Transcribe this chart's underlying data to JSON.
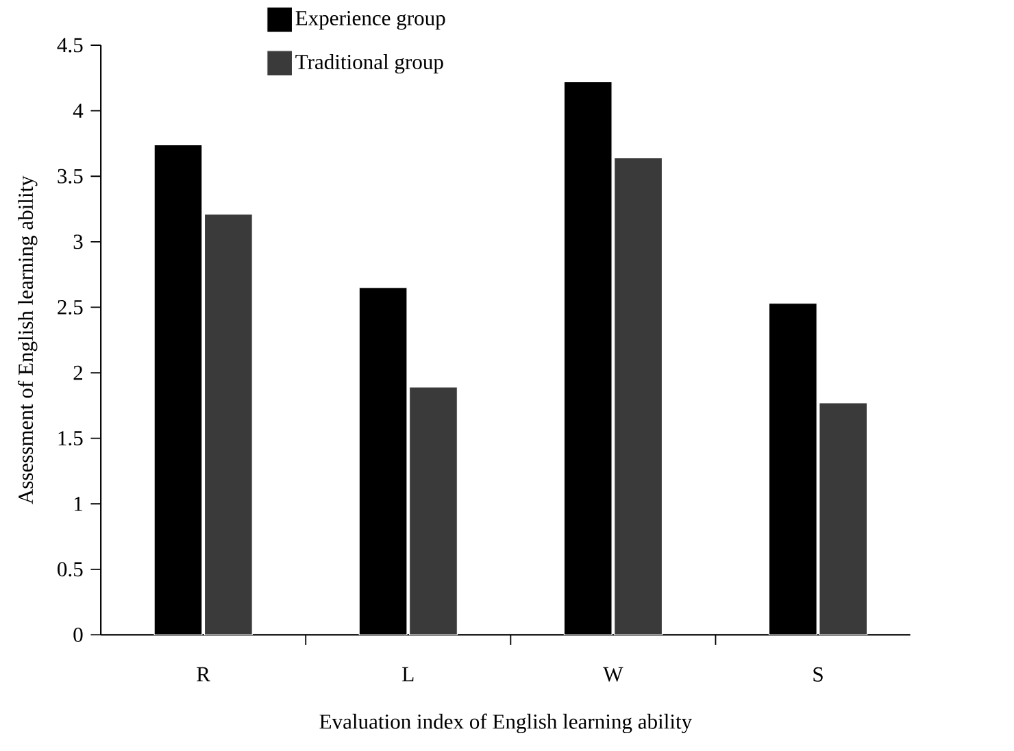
{
  "chart_data": {
    "type": "bar",
    "xlabel": "Evaluation index of English learning ability",
    "ylabel": "Assessment of English learning ability",
    "categories": [
      "R",
      "L",
      "W",
      "S"
    ],
    "series": [
      {
        "name": "Experience group",
        "color": "#000000",
        "values": [
          3.74,
          2.65,
          4.22,
          2.53
        ]
      },
      {
        "name": "Traditional group",
        "color": "#3a3a3a",
        "values": [
          3.21,
          1.89,
          3.64,
          1.77
        ]
      }
    ],
    "ylim": [
      0,
      4.5
    ],
    "yticks": [
      0,
      0.5,
      1,
      1.5,
      2,
      2.5,
      3,
      3.5,
      4,
      4.5
    ],
    "legend": "top"
  }
}
